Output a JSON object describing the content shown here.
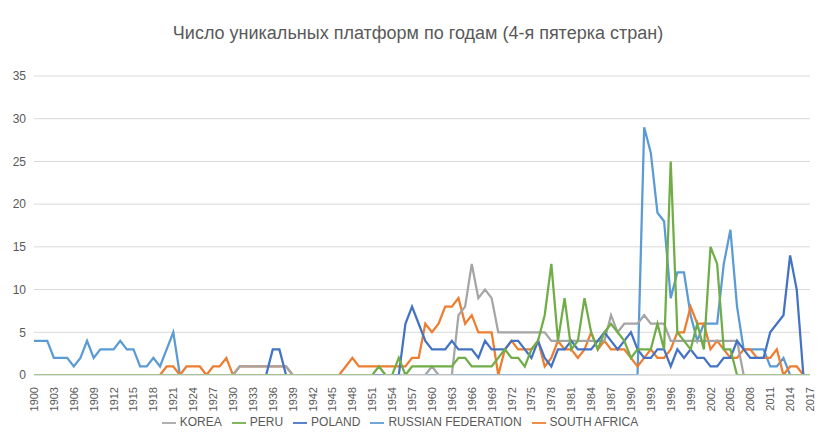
{
  "chart_data": {
    "type": "line",
    "title": "Число уникальных платформ по годам (4-я пятерка стран)",
    "x": [
      1900,
      1901,
      1902,
      1903,
      1904,
      1905,
      1906,
      1907,
      1908,
      1909,
      1910,
      1911,
      1912,
      1913,
      1914,
      1915,
      1916,
      1917,
      1918,
      1919,
      1920,
      1921,
      1922,
      1923,
      1924,
      1925,
      1926,
      1927,
      1928,
      1929,
      1930,
      1931,
      1932,
      1933,
      1934,
      1935,
      1936,
      1937,
      1938,
      1939,
      1940,
      1941,
      1942,
      1943,
      1944,
      1945,
      1946,
      1947,
      1948,
      1949,
      1950,
      1951,
      1952,
      1953,
      1954,
      1955,
      1956,
      1957,
      1958,
      1959,
      1960,
      1961,
      1962,
      1963,
      1964,
      1965,
      1966,
      1967,
      1968,
      1969,
      1970,
      1971,
      1972,
      1973,
      1974,
      1975,
      1976,
      1977,
      1978,
      1979,
      1980,
      1981,
      1982,
      1983,
      1984,
      1985,
      1986,
      1987,
      1988,
      1989,
      1990,
      1991,
      1992,
      1993,
      1994,
      1995,
      1996,
      1997,
      1998,
      1999,
      2000,
      2001,
      2002,
      2003,
      2004,
      2005,
      2006,
      2007,
      2008,
      2009,
      2010,
      2011,
      2012,
      2013,
      2014,
      2015,
      2016,
      2017
    ],
    "xlim": [
      1900,
      2017
    ],
    "xticks": [
      1900,
      1903,
      1906,
      1909,
      1912,
      1915,
      1918,
      1921,
      1924,
      1927,
      1930,
      1933,
      1936,
      1939,
      1942,
      1945,
      1948,
      1951,
      1954,
      1957,
      1960,
      1963,
      1966,
      1969,
      1972,
      1975,
      1978,
      1981,
      1984,
      1987,
      1990,
      1993,
      1996,
      1999,
      2002,
      2005,
      2008,
      2011,
      2014,
      2017
    ],
    "ylim": [
      0,
      35
    ],
    "yticks": [
      0,
      5,
      10,
      15,
      20,
      25,
      30,
      35
    ],
    "grid": true,
    "legend": "bottom",
    "series": [
      {
        "name": "RUSSIAN FEDERATION",
        "color": "#5B9BD5",
        "values": [
          4,
          4,
          4,
          2,
          2,
          2,
          1,
          2,
          4,
          2,
          3,
          3,
          3,
          4,
          3,
          3,
          1,
          1,
          2,
          1,
          3,
          5,
          0,
          0,
          0,
          0,
          0,
          0,
          0,
          0,
          0,
          0,
          0,
          0,
          0,
          0,
          0,
          0,
          0,
          0,
          0,
          0,
          0,
          0,
          0,
          0,
          0,
          0,
          0,
          0,
          0,
          0,
          0,
          0,
          0,
          0,
          0,
          0,
          0,
          0,
          0,
          0,
          0,
          0,
          0,
          0,
          0,
          0,
          0,
          0,
          0,
          0,
          0,
          0,
          0,
          0,
          0,
          0,
          0,
          0,
          0,
          0,
          0,
          0,
          0,
          0,
          0,
          0,
          0,
          0,
          0,
          0,
          29,
          26,
          19,
          18,
          9,
          12,
          12,
          7,
          4,
          6,
          6,
          6,
          13,
          17,
          8,
          3,
          3,
          3,
          3,
          1,
          1,
          2,
          0,
          0,
          0,
          0
        ]
      },
      {
        "name": "SOUTH AFRICA",
        "color": "#ED7D31",
        "values": [
          0,
          0,
          0,
          0,
          0,
          0,
          0,
          0,
          0,
          0,
          0,
          0,
          0,
          0,
          0,
          0,
          0,
          0,
          0,
          0,
          1,
          1,
          0,
          1,
          1,
          1,
          0,
          1,
          1,
          2,
          0,
          1,
          1,
          1,
          1,
          1,
          1,
          1,
          1,
          0,
          0,
          0,
          0,
          0,
          0,
          0,
          0,
          1,
          2,
          1,
          1,
          1,
          1,
          1,
          1,
          1,
          1,
          2,
          2,
          6,
          5,
          6,
          8,
          8,
          9,
          6,
          7,
          5,
          5,
          5,
          0,
          3,
          4,
          3,
          3,
          3,
          4,
          1,
          2,
          4,
          3,
          3,
          2,
          3,
          5,
          3,
          4,
          3,
          3,
          3,
          2,
          1,
          2,
          3,
          2,
          2,
          3,
          5,
          5,
          8,
          6,
          6,
          3,
          4,
          3,
          2,
          2,
          3,
          3,
          2,
          2,
          2,
          3,
          0,
          1,
          1,
          0,
          0
        ]
      },
      {
        "name": "KOREA",
        "color": "#A5A5A5",
        "values": [
          0,
          0,
          0,
          0,
          0,
          0,
          0,
          0,
          0,
          0,
          0,
          0,
          0,
          0,
          0,
          0,
          0,
          0,
          0,
          0,
          0,
          0,
          0,
          0,
          0,
          0,
          0,
          0,
          0,
          0,
          0,
          1,
          1,
          1,
          1,
          1,
          1,
          1,
          1,
          0,
          0,
          0,
          0,
          0,
          0,
          0,
          0,
          0,
          0,
          0,
          0,
          0,
          0,
          0,
          0,
          0,
          0,
          0,
          0,
          0,
          1,
          0,
          0,
          0,
          7,
          8,
          13,
          9,
          10,
          9,
          5,
          5,
          5,
          5,
          5,
          5,
          5,
          5,
          4,
          4,
          4,
          4,
          4,
          4,
          4,
          4,
          4,
          7,
          5,
          6,
          6,
          6,
          7,
          6,
          6,
          6,
          4,
          4,
          4,
          4,
          4,
          4,
          4,
          4,
          4,
          4,
          4,
          0,
          0,
          0,
          0,
          0,
          0,
          0,
          0,
          0,
          0,
          0
        ]
      },
      {
        "name": "POLAND",
        "color": "#4472C4",
        "values": [
          0,
          0,
          0,
          0,
          0,
          0,
          0,
          0,
          0,
          0,
          0,
          0,
          0,
          0,
          0,
          0,
          0,
          0,
          0,
          0,
          0,
          0,
          0,
          0,
          0,
          0,
          0,
          0,
          0,
          0,
          0,
          0,
          0,
          0,
          0,
          0,
          3,
          3,
          0,
          0,
          0,
          0,
          0,
          0,
          0,
          0,
          0,
          0,
          0,
          0,
          0,
          0,
          0,
          0,
          0,
          0,
          6,
          8,
          6,
          4,
          3,
          3,
          3,
          4,
          3,
          3,
          3,
          2,
          4,
          3,
          3,
          3,
          4,
          4,
          3,
          2,
          4,
          2,
          1,
          3,
          3,
          4,
          3,
          3,
          3,
          4,
          5,
          4,
          3,
          4,
          5,
          3,
          2,
          2,
          3,
          3,
          1,
          3,
          2,
          3,
          2,
          2,
          1,
          1,
          2,
          2,
          4,
          3,
          2,
          2,
          2,
          5,
          6,
          7,
          14,
          10,
          0,
          0
        ]
      },
      {
        "name": "PERU",
        "color": "#70AD47",
        "values": [
          0,
          0,
          0,
          0,
          0,
          0,
          0,
          0,
          0,
          0,
          0,
          0,
          0,
          0,
          0,
          0,
          0,
          0,
          0,
          0,
          0,
          0,
          0,
          0,
          0,
          0,
          0,
          0,
          0,
          0,
          0,
          0,
          0,
          0,
          0,
          0,
          0,
          0,
          0,
          0,
          0,
          0,
          0,
          0,
          0,
          0,
          0,
          0,
          0,
          0,
          0,
          0,
          1,
          0,
          0,
          2,
          0,
          1,
          1,
          1,
          1,
          1,
          1,
          1,
          2,
          2,
          1,
          1,
          1,
          1,
          2,
          3,
          2,
          2,
          1,
          3,
          4,
          7,
          13,
          4,
          9,
          3,
          4,
          9,
          5,
          3,
          5,
          6,
          5,
          4,
          2,
          3,
          3,
          3,
          6,
          3,
          25,
          5,
          4,
          3,
          6,
          3,
          15,
          13,
          3,
          3,
          0,
          0,
          0,
          0,
          0,
          0,
          0,
          0,
          0,
          0,
          0,
          0
        ]
      }
    ]
  }
}
